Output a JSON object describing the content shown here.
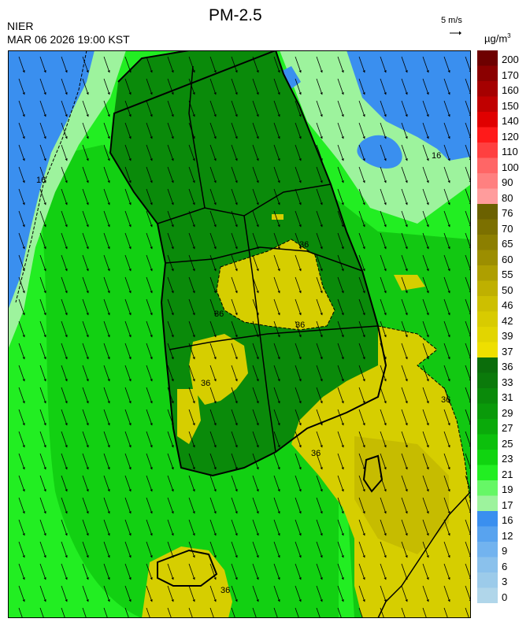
{
  "header": {
    "agency": "NIER",
    "datetime": "MAR 06 2026 19:00 KST",
    "title": "PM-2.5",
    "wind_reference": "5 m/s",
    "unit_base": "µg/m",
    "unit_exp": "3"
  },
  "colorbar": {
    "levels": [
      {
        "label": "200",
        "color": "#6e0000"
      },
      {
        "label": "170",
        "color": "#8b0000"
      },
      {
        "label": "160",
        "color": "#a50000"
      },
      {
        "label": "150",
        "color": "#c00000"
      },
      {
        "label": "140",
        "color": "#e00000"
      },
      {
        "label": "120",
        "color": "#ff1a1a"
      },
      {
        "label": "110",
        "color": "#ff4040"
      },
      {
        "label": "100",
        "color": "#ff6666"
      },
      {
        "label": "90",
        "color": "#ff8080"
      },
      {
        "label": "80",
        "color": "#ff9c9c"
      },
      {
        "label": "76",
        "color": "#6b6100"
      },
      {
        "label": "70",
        "color": "#7c7000"
      },
      {
        "label": "65",
        "color": "#8c7f00"
      },
      {
        "label": "60",
        "color": "#9c8e00"
      },
      {
        "label": "55",
        "color": "#ae9f00"
      },
      {
        "label": "50",
        "color": "#bfb000"
      },
      {
        "label": "46",
        "color": "#cdbf00"
      },
      {
        "label": "42",
        "color": "#d8cb00"
      },
      {
        "label": "39",
        "color": "#e2d500"
      },
      {
        "label": "37",
        "color": "#eedf00"
      },
      {
        "label": "36",
        "color": "#0b6d0b"
      },
      {
        "label": "33",
        "color": "#0b7a0b"
      },
      {
        "label": "31",
        "color": "#0a8a0a"
      },
      {
        "label": "29",
        "color": "#0a9a0a"
      },
      {
        "label": "27",
        "color": "#0aaa0a"
      },
      {
        "label": "25",
        "color": "#0cc00c"
      },
      {
        "label": "23",
        "color": "#10d410"
      },
      {
        "label": "21",
        "color": "#22ee22"
      },
      {
        "label": "19",
        "color": "#66f766"
      },
      {
        "label": "17",
        "color": "#9df39d"
      },
      {
        "label": "16",
        "color": "#3a8fef"
      },
      {
        "label": "12",
        "color": "#58a3ef"
      },
      {
        "label": "9",
        "color": "#72b3ef"
      },
      {
        "label": "6",
        "color": "#8ac1ec"
      },
      {
        "label": "3",
        "color": "#9ccbea"
      },
      {
        "label": "0",
        "color": "#b0d6ea"
      }
    ]
  },
  "map": {
    "contour_labels": [
      "16",
      "16",
      "36",
      "36",
      "36",
      "36",
      "36",
      "36",
      "36"
    ],
    "colors": {
      "sea_blue": "#3a8fef",
      "light_green": "#9df39d",
      "bright_green": "#22ee22",
      "green": "#10c810",
      "dark_green": "#0a8a0a",
      "yellow": "#d6ce00",
      "olive": "#bfb000"
    }
  }
}
